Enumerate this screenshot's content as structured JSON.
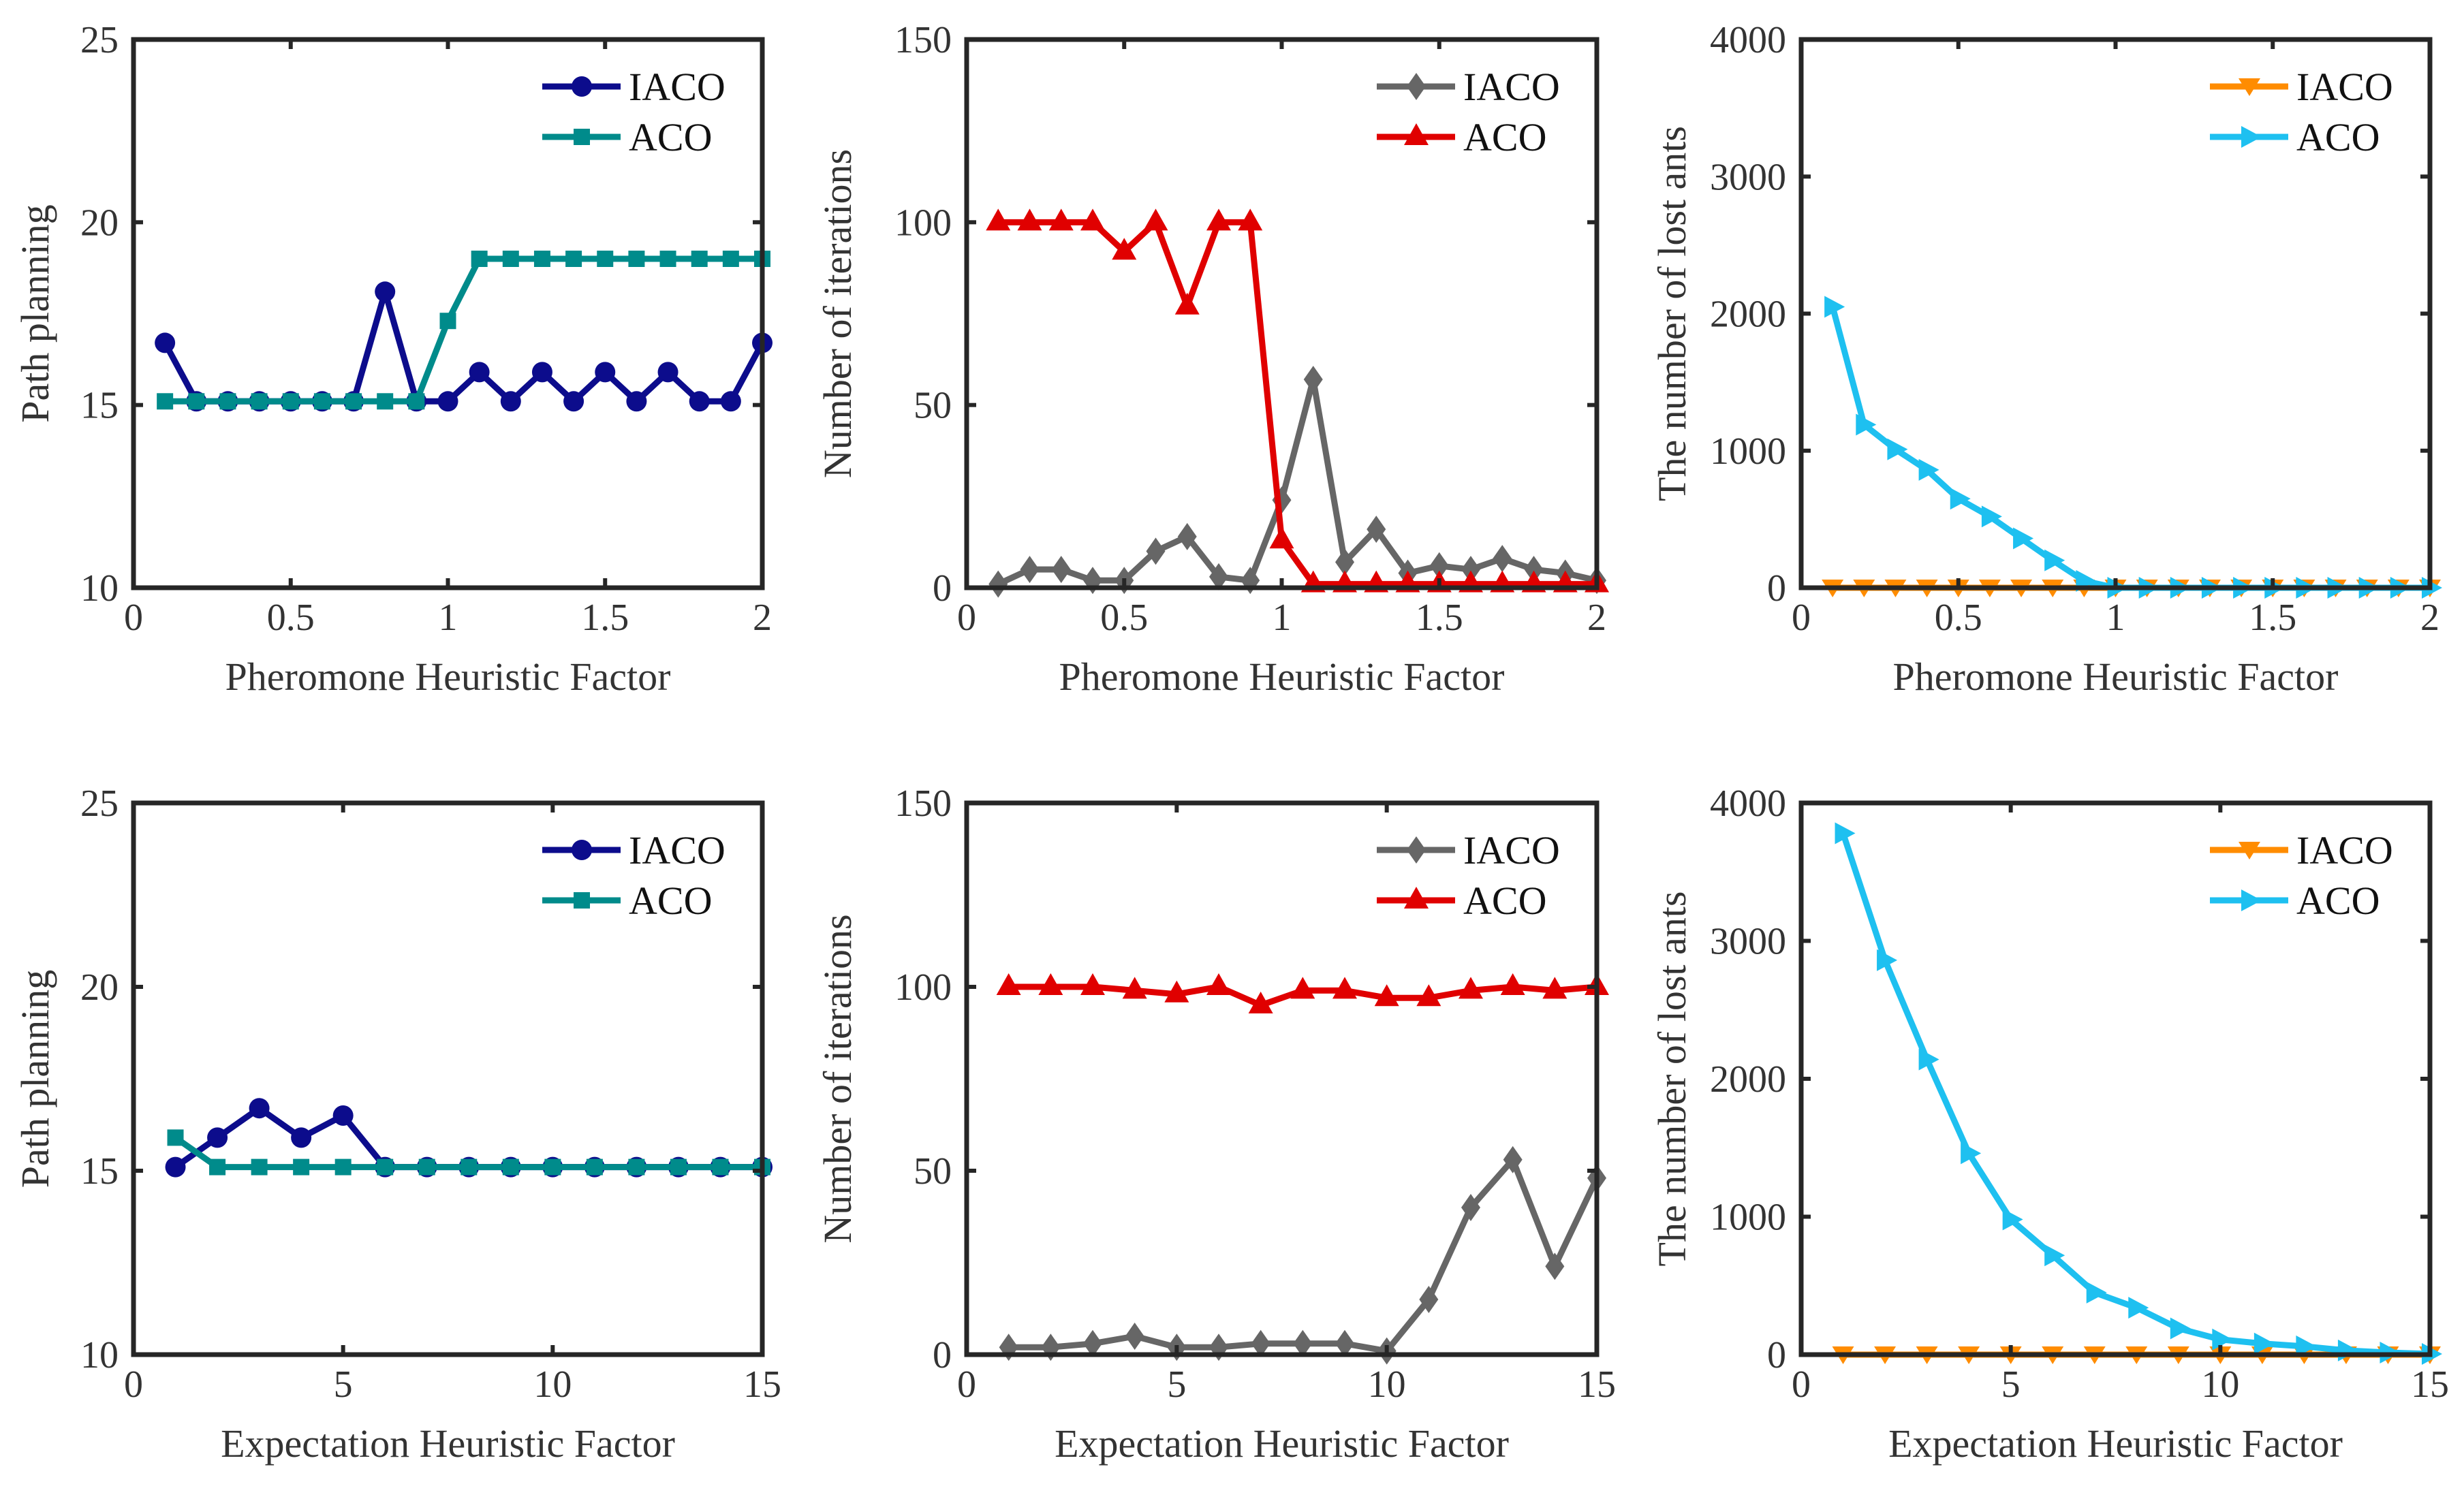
{
  "chart_data": [
    {
      "type": "line",
      "xlabel": "Pheromone Heuristic Factor",
      "ylabel": "Path planning",
      "xlim": [
        0,
        2
      ],
      "ylim": [
        10,
        25
      ],
      "xticks": [
        "0",
        "0.5",
        "1",
        "1.5",
        "2"
      ],
      "xtick_values": [
        0,
        0.5,
        1,
        1.5,
        2
      ],
      "yticks": [
        "10",
        "15",
        "20",
        "25"
      ],
      "ytick_values": [
        10,
        15,
        20,
        25
      ],
      "legend_position": "top-right",
      "x": [
        0.1,
        0.2,
        0.3,
        0.4,
        0.5,
        0.6,
        0.7,
        0.8,
        0.9,
        1.0,
        1.1,
        1.2,
        1.3,
        1.4,
        1.5,
        1.6,
        1.7,
        1.8,
        1.9,
        2.0
      ],
      "series": [
        {
          "name": "IACO",
          "color": "#0c0c8c",
          "marker": "circle",
          "values": [
            16.7,
            15.1,
            15.1,
            15.1,
            15.1,
            15.1,
            15.1,
            18.1,
            15.1,
            15.1,
            15.9,
            15.1,
            15.9,
            15.1,
            15.9,
            15.1,
            15.9,
            15.1,
            15.1,
            16.7
          ]
        },
        {
          "name": "ACO",
          "color": "#008b8b",
          "marker": "square",
          "values": [
            15.1,
            15.1,
            15.1,
            15.1,
            15.1,
            15.1,
            15.1,
            15.1,
            15.1,
            17.3,
            19.0,
            19.0,
            19.0,
            19.0,
            19.0,
            19.0,
            19.0,
            19.0,
            19.0,
            19.0
          ]
        }
      ]
    },
    {
      "type": "line",
      "xlabel": "Pheromone Heuristic Factor",
      "ylabel": "Number of iterations",
      "xlim": [
        0,
        2
      ],
      "ylim": [
        0,
        150
      ],
      "xticks": [
        "0",
        "0.5",
        "1",
        "1.5",
        "2"
      ],
      "xtick_values": [
        0,
        0.5,
        1,
        1.5,
        2
      ],
      "yticks": [
        "0",
        "50",
        "100",
        "150"
      ],
      "ytick_values": [
        0,
        50,
        100,
        150
      ],
      "legend_position": "top-right",
      "x": [
        0.1,
        0.2,
        0.3,
        0.4,
        0.5,
        0.6,
        0.7,
        0.8,
        0.9,
        1.0,
        1.1,
        1.2,
        1.3,
        1.4,
        1.5,
        1.6,
        1.7,
        1.8,
        1.9,
        2.0
      ],
      "series": [
        {
          "name": "IACO",
          "color": "#666666",
          "marker": "diamond",
          "values": [
            1,
            5,
            5,
            2,
            2,
            10,
            14,
            3,
            2,
            24,
            57,
            7,
            16,
            4,
            6,
            5,
            8,
            5,
            4,
            2
          ]
        },
        {
          "name": "ACO",
          "color": "#e00000",
          "marker": "triangle-up",
          "values": [
            100,
            100,
            100,
            100,
            92,
            100,
            77,
            100,
            100,
            13,
            1,
            1,
            1,
            1,
            1,
            1,
            1,
            1,
            1,
            1
          ]
        }
      ]
    },
    {
      "type": "line",
      "xlabel": "Pheromone Heuristic Factor",
      "ylabel": "The number of lost ants",
      "xlim": [
        0,
        2
      ],
      "ylim": [
        0,
        4000
      ],
      "xticks": [
        "0",
        "0.5",
        "1",
        "1.5",
        "2"
      ],
      "xtick_values": [
        0,
        0.5,
        1,
        1.5,
        2
      ],
      "yticks": [
        "0",
        "1000",
        "2000",
        "3000",
        "4000"
      ],
      "ytick_values": [
        0,
        1000,
        2000,
        3000,
        4000
      ],
      "legend_position": "top-right",
      "x": [
        0.1,
        0.2,
        0.3,
        0.4,
        0.5,
        0.6,
        0.7,
        0.8,
        0.9,
        1.0,
        1.1,
        1.2,
        1.3,
        1.4,
        1.5,
        1.6,
        1.7,
        1.8,
        1.9,
        2.0
      ],
      "series": [
        {
          "name": "IACO",
          "color": "#ff8c00",
          "marker": "triangle-down",
          "values": [
            0,
            0,
            0,
            0,
            0,
            0,
            0,
            0,
            0,
            0,
            0,
            0,
            0,
            0,
            0,
            0,
            0,
            0,
            0,
            0
          ]
        },
        {
          "name": "ACO",
          "color": "#1ec0f0",
          "marker": "triangle-right",
          "values": [
            2050,
            1190,
            1010,
            860,
            650,
            520,
            360,
            200,
            50,
            0,
            0,
            0,
            0,
            0,
            0,
            0,
            0,
            0,
            0,
            0
          ]
        }
      ]
    },
    {
      "type": "line",
      "xlabel": "Expectation Heuristic Factor",
      "ylabel": "Path planning",
      "xlim": [
        0,
        15
      ],
      "ylim": [
        10,
        25
      ],
      "xticks": [
        "0",
        "5",
        "10",
        "15"
      ],
      "xtick_values": [
        0,
        5,
        10,
        15
      ],
      "yticks": [
        "10",
        "15",
        "20",
        "25"
      ],
      "ytick_values": [
        10,
        15,
        20,
        25
      ],
      "legend_position": "top-right",
      "x": [
        1,
        2,
        3,
        4,
        5,
        6,
        7,
        8,
        9,
        10,
        11,
        12,
        13,
        14,
        15
      ],
      "series": [
        {
          "name": "IACO",
          "color": "#0c0c8c",
          "marker": "circle",
          "values": [
            15.1,
            15.9,
            16.7,
            15.9,
            16.5,
            15.1,
            15.1,
            15.1,
            15.1,
            15.1,
            15.1,
            15.1,
            15.1,
            15.1,
            15.1
          ]
        },
        {
          "name": "ACO",
          "color": "#008b8b",
          "marker": "square",
          "values": [
            15.9,
            15.1,
            15.1,
            15.1,
            15.1,
            15.1,
            15.1,
            15.1,
            15.1,
            15.1,
            15.1,
            15.1,
            15.1,
            15.1,
            15.1
          ]
        }
      ]
    },
    {
      "type": "line",
      "xlabel": "Expectation Heuristic Factor",
      "ylabel": "Number of iterations",
      "xlim": [
        0,
        15
      ],
      "ylim": [
        0,
        150
      ],
      "xticks": [
        "0",
        "5",
        "10",
        "15"
      ],
      "xtick_values": [
        0,
        5,
        10,
        15
      ],
      "yticks": [
        "0",
        "50",
        "100",
        "150"
      ],
      "ytick_values": [
        0,
        50,
        100,
        150
      ],
      "legend_position": "top-right",
      "x": [
        1,
        2,
        3,
        4,
        5,
        6,
        7,
        8,
        9,
        10,
        11,
        12,
        13,
        14,
        15
      ],
      "series": [
        {
          "name": "IACO",
          "color": "#666666",
          "marker": "diamond",
          "values": [
            2,
            2,
            3,
            5,
            2,
            2,
            3,
            3,
            3,
            1,
            15,
            40,
            53,
            24,
            48
          ]
        },
        {
          "name": "ACO",
          "color": "#e00000",
          "marker": "triangle-up",
          "values": [
            100,
            100,
            100,
            99,
            98,
            100,
            95,
            99,
            99,
            97,
            97,
            99,
            100,
            99,
            100
          ]
        }
      ]
    },
    {
      "type": "line",
      "xlabel": "Expectation Heuristic Factor",
      "ylabel": "The number of lost ants",
      "xlim": [
        0,
        15
      ],
      "ylim": [
        0,
        4000
      ],
      "xticks": [
        "0",
        "5",
        "10",
        "15"
      ],
      "xtick_values": [
        0,
        5,
        10,
        15
      ],
      "yticks": [
        "0",
        "1000",
        "2000",
        "3000",
        "4000"
      ],
      "ytick_values": [
        0,
        1000,
        2000,
        3000,
        4000
      ],
      "legend_position": "top-right",
      "x": [
        1,
        2,
        3,
        4,
        5,
        6,
        7,
        8,
        9,
        10,
        11,
        12,
        13,
        14,
        15
      ],
      "series": [
        {
          "name": "IACO",
          "color": "#ff8c00",
          "marker": "triangle-down",
          "values": [
            0,
            0,
            0,
            0,
            0,
            0,
            0,
            0,
            0,
            0,
            0,
            0,
            0,
            0,
            0
          ]
        },
        {
          "name": "ACO",
          "color": "#1ec0f0",
          "marker": "triangle-right",
          "values": [
            3780,
            2860,
            2140,
            1460,
            980,
            720,
            450,
            340,
            190,
            110,
            80,
            60,
            30,
            15,
            5
          ]
        }
      ]
    }
  ]
}
